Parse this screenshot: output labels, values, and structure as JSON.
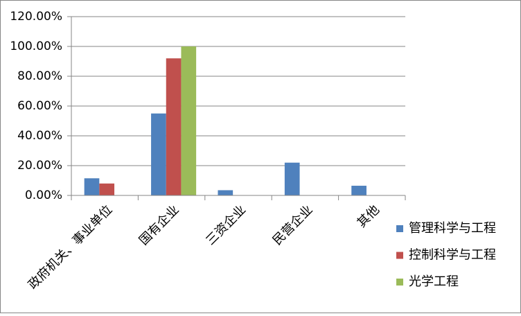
{
  "chart_data": {
    "type": "bar",
    "categories": [
      "政府机关、事业单位",
      "国有企业",
      "三资企业",
      "民营企业",
      "其他"
    ],
    "series": [
      {
        "name": "管理科学与工程",
        "color": "#4f81bd",
        "values": [
          11.5,
          55,
          3.5,
          22,
          6.5
        ]
      },
      {
        "name": "控制科学与工程",
        "color": "#c0504d",
        "values": [
          8,
          92,
          0,
          0,
          0
        ]
      },
      {
        "name": "光学工程",
        "color": "#9bbb59",
        "values": [
          0,
          100,
          0,
          0,
          0
        ]
      }
    ],
    "ylim": [
      0,
      120
    ],
    "yticks": [
      {
        "value": 0,
        "label": "0.00%"
      },
      {
        "value": 20,
        "label": "20.00%"
      },
      {
        "value": 40,
        "label": "40.00%"
      },
      {
        "value": 60,
        "label": "60.00%"
      },
      {
        "value": 80,
        "label": "80.00%"
      },
      {
        "value": 100,
        "label": "100.00%"
      },
      {
        "value": 120,
        "label": "120.00%"
      }
    ],
    "grid": true,
    "legend": "right"
  }
}
